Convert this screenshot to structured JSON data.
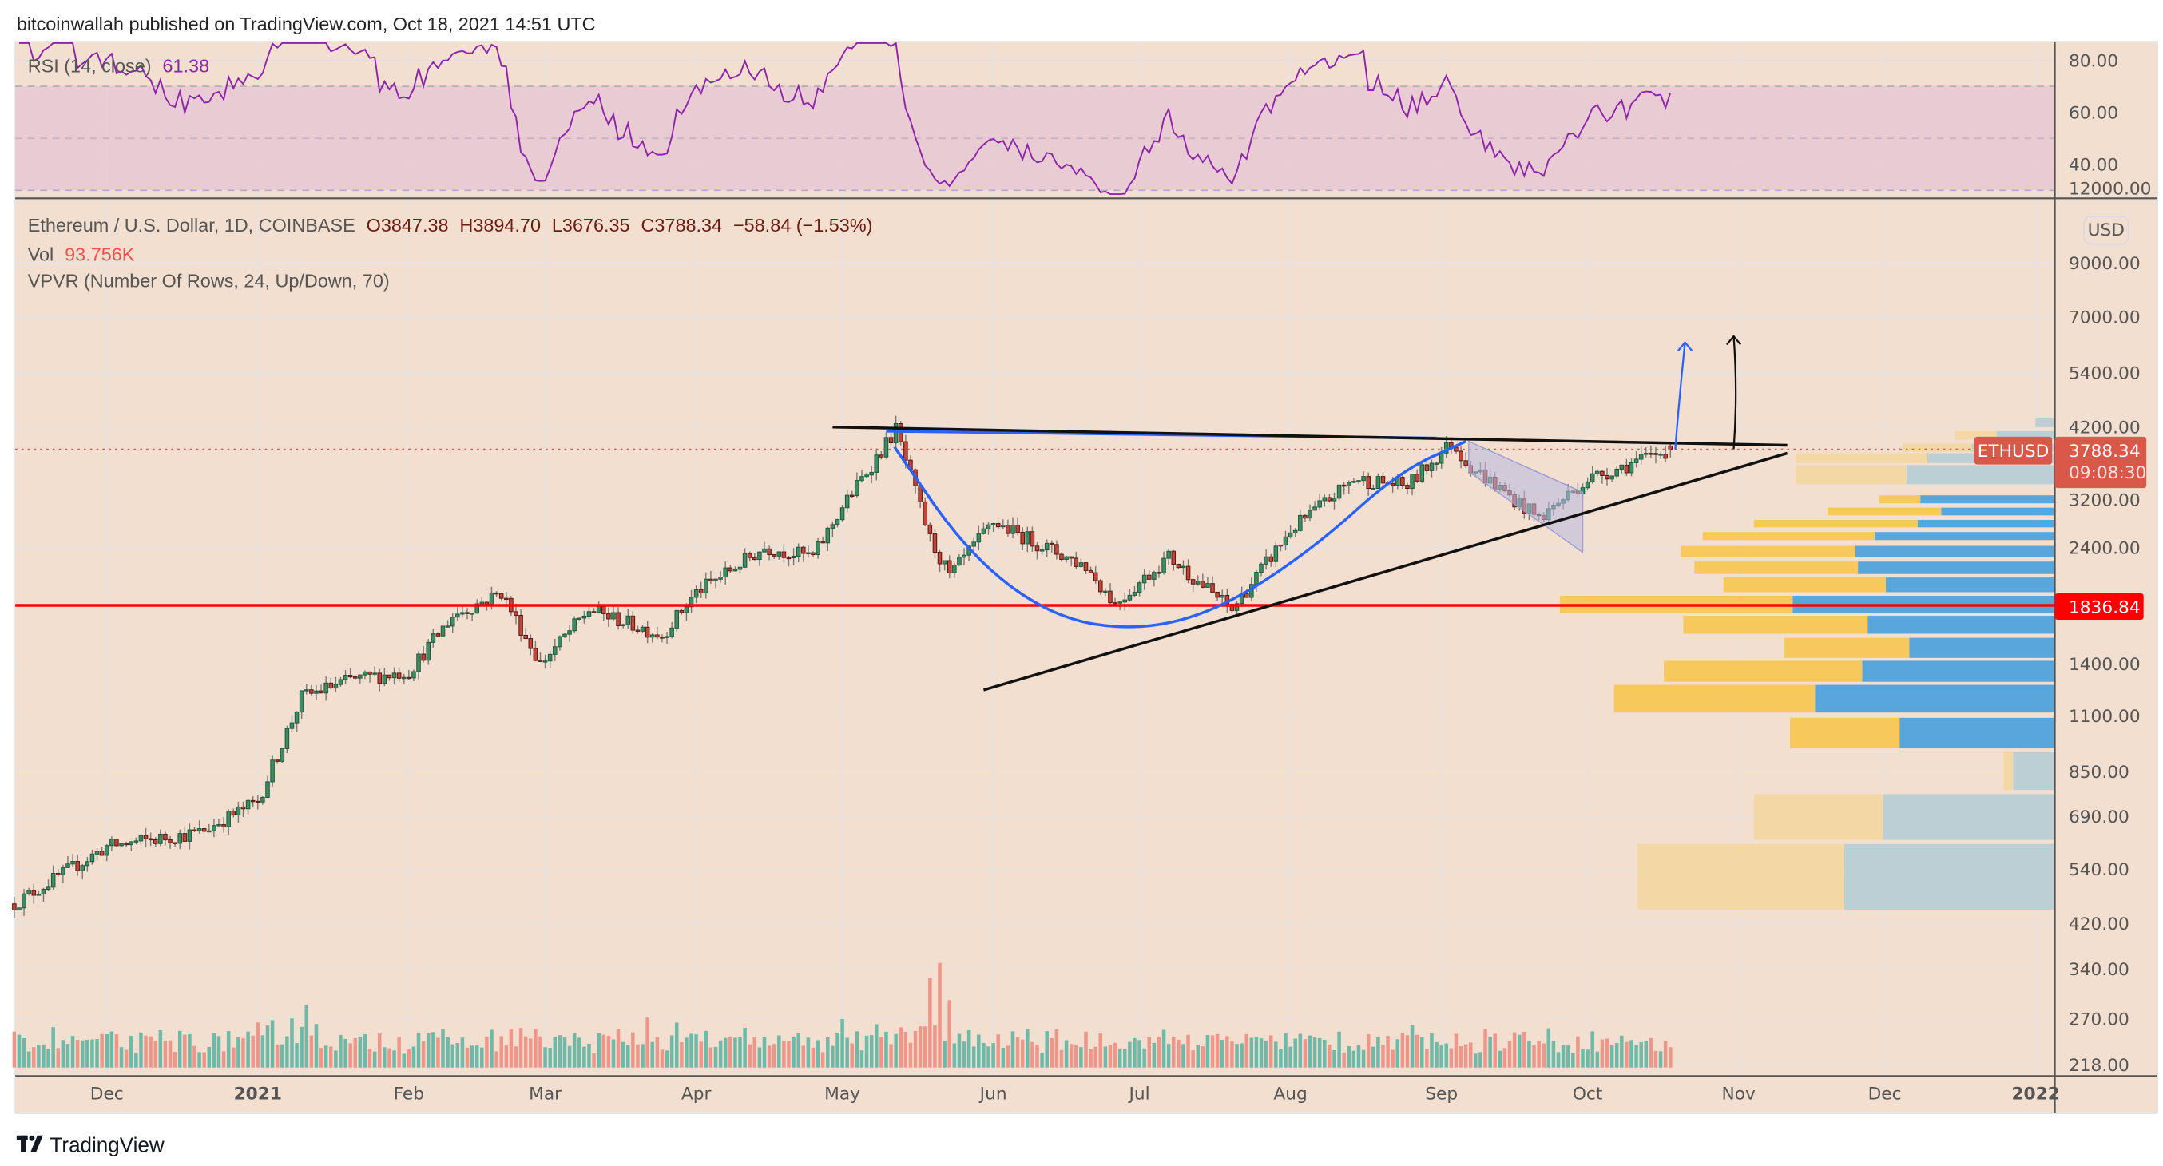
{
  "header": {
    "publisher_line": "bitcoinwallah published on TradingView.com, Oct 18, 2021 14:51 UTC"
  },
  "footer": {
    "logo_text": "TradingView"
  },
  "rsi": {
    "label": "RSI (14, close)",
    "value": "61.38",
    "ticks": [
      "80.00",
      "60.00",
      "40.00"
    ],
    "tick_values": [
      80,
      60,
      40
    ],
    "color": "#8e24aa"
  },
  "legend": {
    "symbol": "Ethereum / U.S. Dollar, 1D, COINBASE",
    "open": "O3847.38",
    "high": "H3894.70",
    "low": "L3676.35",
    "close": "C3788.34",
    "change": "−58.84 (−1.53%)",
    "vol_label": "Vol",
    "vol_value": "93.756K",
    "vpvr": "VPVR (Number Of Rows, 24, Up/Down, 70)"
  },
  "price_axis": {
    "currency": "USD",
    "ticks": [
      "12000.00",
      "9000.00",
      "7000.00",
      "5400.00",
      "4200.00",
      "3200.00",
      "2400.00",
      "1400.00",
      "1100.00",
      "850.00",
      "690.00",
      "540.00",
      "420.00",
      "340.00",
      "270.00",
      "218.00"
    ],
    "tick_values": [
      12000,
      9000,
      7000,
      5400,
      4200,
      3200,
      2400,
      1400,
      1100,
      850,
      690,
      540,
      420,
      340,
      270,
      218
    ],
    "last_price_symbol": "ETHUSD",
    "last_price": "3788.34",
    "countdown": "09:08:30",
    "support_label": "1836.84"
  },
  "time_axis": {
    "labels": [
      "Dec",
      "2021",
      "Feb",
      "Mar",
      "Apr",
      "May",
      "Jun",
      "Jul",
      "Aug",
      "Sep",
      "Oct",
      "Nov",
      "Dec",
      "2022"
    ],
    "label_days": [
      19,
      50,
      81,
      109,
      140,
      170,
      201,
      231,
      262,
      293,
      323,
      354,
      384,
      415
    ]
  },
  "colors": {
    "up": "#3f8c64",
    "up_border": "#1f5a3c",
    "down": "#c4453a",
    "down_border": "#5b1a13",
    "vol_up": "#6fb9a8",
    "vol_down": "#ef968b",
    "vp_up": "#58a6dc",
    "vp_down": "#f7c95c",
    "vp_up_faded": "#bccfd4",
    "vp_down_faded": "#f3d8a6",
    "support": "#ff0000",
    "bg": "#f2dfcf"
  },
  "chart_data": {
    "type": "candlestick",
    "title": "Ethereum / U.S. Dollar, 1D, COINBASE",
    "y_scale": "log",
    "ylim": [
      210,
      13000
    ],
    "x_unit": "days since 2020-11-12",
    "close_waypoints": [
      [
        0,
        460
      ],
      [
        19,
        600
      ],
      [
        38,
        640
      ],
      [
        50,
        740
      ],
      [
        59,
        1200
      ],
      [
        69,
        1300
      ],
      [
        81,
        1350
      ],
      [
        90,
        1750
      ],
      [
        100,
        1950
      ],
      [
        108,
        1400
      ],
      [
        118,
        1800
      ],
      [
        133,
        1600
      ],
      [
        140,
        1950
      ],
      [
        154,
        2400
      ],
      [
        164,
        2300
      ],
      [
        170,
        2900
      ],
      [
        181,
        4150
      ],
      [
        188,
        2500
      ],
      [
        192,
        2100
      ],
      [
        201,
        2700
      ],
      [
        220,
        2200
      ],
      [
        226,
        1850
      ],
      [
        237,
        2300
      ],
      [
        250,
        1800
      ],
      [
        262,
        2600
      ],
      [
        275,
        3300
      ],
      [
        286,
        3200
      ],
      [
        295,
        3900
      ],
      [
        299,
        3500
      ],
      [
        313,
        2750
      ],
      [
        323,
        3300
      ],
      [
        332,
        3550
      ],
      [
        340,
        3788.34
      ]
    ],
    "volume_spikes": [
      [
        50,
        1.5
      ],
      [
        57,
        1.9
      ],
      [
        60,
        3.8
      ],
      [
        62,
        1.7
      ],
      [
        101,
        1.6
      ],
      [
        105,
        1.4
      ],
      [
        130,
        2.4
      ],
      [
        170,
        1.5
      ],
      [
        182,
        1.5
      ],
      [
        188,
        4.4
      ],
      [
        190,
        2.9
      ],
      [
        192,
        2.2
      ],
      [
        226,
        1.7
      ],
      [
        244,
        1.0
      ],
      [
        313,
        1.2
      ]
    ],
    "volume_rows": [
      {
        "low": 4170,
        "high": 4370,
        "up": 14,
        "down": 0,
        "in_range": false
      },
      {
        "low": 3940,
        "high": 4120,
        "up": 42,
        "down": 30,
        "in_range": false
      },
      {
        "low": 3720,
        "high": 3890,
        "up": 60,
        "down": 50,
        "in_range": false
      },
      {
        "low": 3530,
        "high": 3720,
        "up": 92,
        "down": 95,
        "in_range": false
      },
      {
        "low": 3200,
        "high": 3520,
        "up": 107,
        "down": 80,
        "in_range": false
      },
      {
        "low": 2930,
        "high": 3060,
        "up": 97,
        "down": 30,
        "in_range": true
      },
      {
        "low": 2770,
        "high": 2890,
        "up": 82,
        "down": 82,
        "in_range": true
      },
      {
        "low": 2620,
        "high": 2730,
        "up": 99,
        "down": 118,
        "in_range": true
      },
      {
        "low": 2470,
        "high": 2580,
        "up": 130,
        "down": 124,
        "in_range": true
      },
      {
        "low": 2280,
        "high": 2420,
        "up": 144,
        "down": 126,
        "in_range": true
      },
      {
        "low": 2110,
        "high": 2250,
        "up": 142,
        "down": 118,
        "in_range": true
      },
      {
        "low": 1940,
        "high": 2090,
        "up": 122,
        "down": 117,
        "in_range": true
      },
      {
        "low": 1760,
        "high": 1920,
        "up": 189,
        "down": 168,
        "in_range": true
      },
      {
        "low": 1600,
        "high": 1750,
        "up": 135,
        "down": 133,
        "in_range": true
      },
      {
        "low": 1430,
        "high": 1580,
        "up": 105,
        "down": 90,
        "in_range": true
      },
      {
        "low": 1280,
        "high": 1420,
        "up": 139,
        "down": 143,
        "in_range": true
      },
      {
        "low": 1110,
        "high": 1270,
        "up": 173,
        "down": 145,
        "in_range": true
      },
      {
        "low": 940,
        "high": 1090,
        "up": 112,
        "down": 79,
        "in_range": true
      },
      {
        "low": 775,
        "high": 930,
        "up": 30,
        "down": 7,
        "in_range": false
      },
      {
        "low": 615,
        "high": 765,
        "up": 124,
        "down": 93,
        "in_range": false
      },
      {
        "low": 445,
        "high": 607,
        "up": 152,
        "down": 149,
        "in_range": false
      }
    ],
    "drawings": {
      "resistance_line": [
        [
          168,
          4200
        ],
        [
          364,
          3860
        ]
      ],
      "cup_rim_line": [
        [
          179,
          4120
        ],
        [
          292,
          3990
        ]
      ],
      "cup_curve": [
        [
          180.7,
          3830
        ],
        [
          196,
          2320
        ],
        [
          213,
          1740
        ],
        [
          230.5,
          1630
        ],
        [
          247.6,
          1800
        ],
        [
          267,
          2400
        ],
        [
          284,
          3400
        ],
        [
          298,
          3930
        ]
      ],
      "support_trendline": [
        [
          199,
          1240
        ],
        [
          364,
          3720
        ]
      ],
      "bull_flag": [
        [
          298.6,
          3930
        ],
        [
          322,
          3104
        ],
        [
          322,
          2348
        ],
        [
          298.6,
          3416
        ]
      ],
      "blue_arrow": [
        [
          341,
          3788
        ],
        [
          343,
          6220
        ]
      ],
      "black_arrow": [
        [
          353,
          3790
        ],
        [
          353,
          6400
        ]
      ],
      "horizontal_support": 1836.84
    }
  }
}
